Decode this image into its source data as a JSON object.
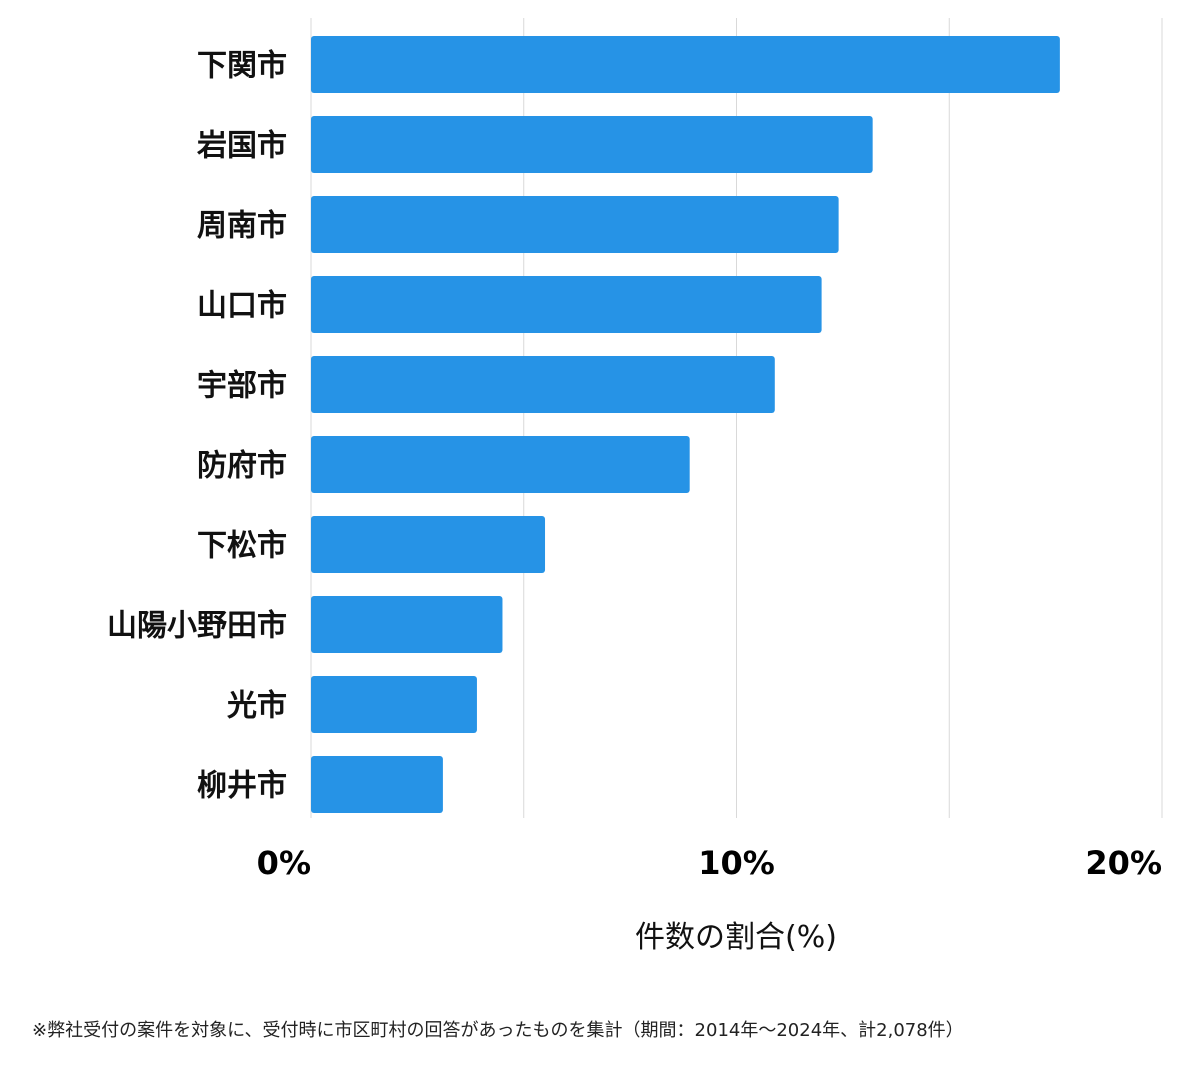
{
  "chart_data": {
    "type": "bar",
    "orientation": "horizontal",
    "categories": [
      "下関市",
      "岩国市",
      "周南市",
      "山口市",
      "宇部市",
      "防府市",
      "下松市",
      "山陽小野田市",
      "光市",
      "柳井市"
    ],
    "values": [
      17.6,
      13.2,
      12.4,
      12.0,
      10.9,
      8.9,
      5.5,
      4.5,
      3.9,
      3.1
    ],
    "xlim": [
      0,
      20
    ],
    "xticks": [
      0,
      10,
      20
    ],
    "xtick_labels": [
      "0%",
      "10%",
      "20%"
    ],
    "grid_values": [
      0,
      5,
      10,
      15,
      20
    ],
    "xlabel": "件数の割合(%)",
    "ylabel": "",
    "bar_color": "#2693e6",
    "grid_color": "#d9d9d9"
  },
  "footnote": "※弊社受付の案件を対象に、受付時に市区町村の回答があったものを集計（期間：2014年～2024年、計2,078件）"
}
